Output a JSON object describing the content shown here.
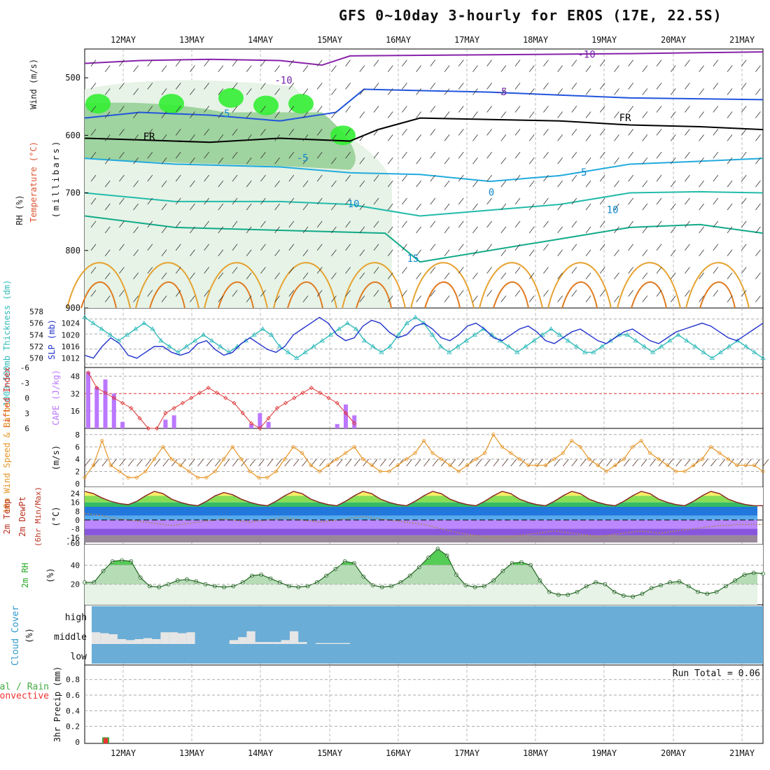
{
  "title": "GFS 0~10day 3-hourly for EROS (17E, 22.5S)",
  "dates": [
    "12MAY",
    "13MAY",
    "14MAY",
    "15MAY",
    "16MAY",
    "17MAY",
    "18MAY",
    "19MAY",
    "20MAY",
    "21MAY"
  ],
  "colors": {
    "grid": "#aaaaaa",
    "rh_green_light": "#e6f3e6",
    "rh_green_mid": "#9fd39f",
    "rh_green_bright": "#33ee33",
    "cape_purple": "#bb77ff",
    "lifted_red": "#dd3333",
    "wind_orange": "#e69526",
    "slp_blue": "#2233cc",
    "thick_cyan": "#33bbbb",
    "cloud_blue": "#6aadd6",
    "cloud_gray": "#e6e6e6",
    "precip_green": "#44aa44",
    "precip_red": "#ee3333"
  },
  "chart_data": [
    {
      "type": "heatmap",
      "panel": "upper-air",
      "ylabel_left": [
        "RH (%)",
        "Temperature (°C)",
        "Wind (m/s)"
      ],
      "ylabel_right": "(millibars)",
      "y_ticks": [
        500,
        600,
        700,
        800,
        900
      ],
      "ylim": [
        900,
        450
      ],
      "contour_labels": [
        "-10",
        "-5",
        "FR",
        "-5",
        "10",
        "15",
        "-10",
        "-5",
        "FR",
        "-5",
        "10",
        "0"
      ],
      "rh_labels": [
        "10",
        "50",
        "50",
        "50",
        "10"
      ]
    },
    {
      "type": "line",
      "panel": "slp-thickness",
      "ylabel_left": "1000~500mb Thickness (dm)",
      "ylabel_right": "SLP (mb)",
      "left_ticks": [
        570,
        572,
        574,
        576,
        578
      ],
      "right_ticks": [
        1012,
        1016,
        1020,
        1024
      ],
      "series": [
        {
          "name": "SLP (mb)",
          "values": [
            1013,
            1012,
            1016,
            1019,
            1017,
            1013,
            1012,
            1014,
            1016,
            1016,
            1014,
            1013,
            1014,
            1017,
            1018,
            1015,
            1013,
            1014,
            1017,
            1019,
            1017,
            1015,
            1014,
            1016,
            1020,
            1022,
            1024,
            1026,
            1024,
            1020,
            1018,
            1019,
            1023,
            1025,
            1024,
            1021,
            1019,
            1020,
            1023,
            1024,
            1022,
            1019,
            1018,
            1020,
            1023,
            1024,
            1022,
            1019,
            1018,
            1020,
            1022,
            1023,
            1021,
            1018,
            1017,
            1019,
            1021,
            1022,
            1020,
            1018,
            1017,
            1019,
            1021,
            1022,
            1020,
            1018,
            1017,
            1019,
            1021,
            1022,
            1023,
            1024,
            1023,
            1021,
            1019,
            1018,
            1020,
            1022,
            1024
          ]
        },
        {
          "name": "Thickness (dm)",
          "values": [
            577,
            576,
            575,
            574,
            573,
            574,
            575,
            576,
            575,
            573,
            572,
            571,
            572,
            573,
            574,
            573,
            572,
            571,
            572,
            573,
            574,
            575,
            574,
            572,
            571,
            570,
            571,
            572,
            573,
            574,
            575,
            576,
            575,
            573,
            572,
            571,
            572,
            574,
            576,
            577,
            576,
            574,
            572,
            571,
            572,
            573,
            574,
            575,
            574,
            573,
            572,
            571,
            572,
            573,
            574,
            575,
            574,
            573,
            572,
            571,
            571,
            572,
            573,
            574,
            574,
            573,
            572,
            571,
            572,
            573,
            574,
            573,
            572,
            571,
            570,
            571,
            572,
            573,
            572,
            571,
            570
          ]
        }
      ]
    },
    {
      "type": "bar",
      "panel": "cape-lifted",
      "ylabel_left": "Lifted Index",
      "ylabel_right": "CAPE (J/kg)",
      "left_ticks": [
        "-6",
        "-3",
        "0",
        "3",
        "6"
      ],
      "right_ticks": [
        16,
        32,
        48
      ],
      "cape_values": [
        52,
        38,
        45,
        32,
        6,
        0,
        0,
        0,
        0,
        8,
        12,
        0,
        0,
        0,
        0,
        0,
        0,
        0,
        0,
        4,
        14,
        6,
        0,
        0,
        0,
        0,
        0,
        0,
        0,
        4,
        22,
        12
      ],
      "lifted_values": [
        -5,
        -2,
        -1,
        0,
        1,
        2,
        4,
        6,
        6,
        3,
        2,
        1,
        0,
        -1,
        -2,
        -1,
        0,
        1,
        3,
        5,
        6,
        4,
        2,
        1,
        0,
        -1,
        -2,
        -1,
        0,
        1,
        3,
        5
      ]
    },
    {
      "type": "line",
      "panel": "wind10m",
      "ylabel_left": "10m Wind Speed & Barbs",
      "ylabel_right": "(m/s)",
      "y_ticks": [
        0,
        2,
        4,
        6,
        8
      ],
      "series": [
        {
          "name": "10m Wind Speed",
          "values": [
            1,
            3,
            7,
            3,
            2,
            1,
            1,
            2,
            4,
            6,
            4,
            3,
            2,
            1,
            1,
            2,
            4,
            6,
            4,
            2,
            1,
            1,
            2,
            4,
            6,
            5,
            3,
            2,
            3,
            4,
            5,
            6,
            4,
            3,
            2,
            2,
            3,
            4,
            5,
            7,
            5,
            4,
            3,
            2,
            3,
            4,
            5,
            8,
            6,
            5,
            4,
            3,
            3,
            3,
            4,
            5,
            7,
            6,
            4,
            3,
            2,
            3,
            4,
            6,
            7,
            5,
            4,
            3,
            2,
            2,
            3,
            4,
            6,
            5,
            4,
            3,
            3,
            3,
            2
          ]
        }
      ]
    },
    {
      "type": "area",
      "panel": "temp2m",
      "ylabel_left": "2m Temp 2m DewPt (6hr Min/Max)",
      "ylabel_right": "(°C)",
      "y_ticks": [
        "24",
        "16",
        "8",
        "0",
        "-8",
        "-16",
        "-60"
      ],
      "series": [
        {
          "name": "2m Temp",
          "values": [
            26,
            24,
            20,
            17,
            15,
            14,
            17,
            22,
            26,
            24,
            19,
            16,
            14,
            13,
            17,
            22,
            25,
            23,
            19,
            16,
            14,
            13,
            17,
            22,
            26,
            24,
            19,
            16,
            14,
            13,
            17,
            22,
            26,
            24,
            19,
            16,
            14,
            13,
            17,
            22,
            26,
            24,
            19,
            16,
            14,
            13,
            17,
            22,
            26,
            24,
            19,
            16,
            14,
            13,
            17,
            22,
            26,
            24,
            19,
            16,
            14,
            13,
            17,
            22,
            26,
            24,
            19,
            16,
            14,
            13,
            17,
            22,
            26,
            24,
            19,
            16,
            14,
            13,
            13
          ]
        },
        {
          "name": "2m DewPt",
          "values": [
            6,
            5,
            4,
            2,
            1,
            0,
            -1,
            -2,
            -3,
            -4,
            -5,
            -4,
            -3,
            -2,
            -1,
            0,
            1,
            0,
            -1,
            -2,
            -1,
            0,
            1,
            2,
            1,
            0,
            -1,
            -2,
            -1,
            0,
            1,
            2,
            3,
            2,
            1,
            0,
            -1,
            -2,
            -3,
            -4,
            -6,
            -8,
            -10,
            -12,
            -13,
            -14,
            -15,
            -16,
            -16,
            -15,
            -14,
            -13,
            -12,
            -11,
            -10,
            -11,
            -12,
            -13,
            -14,
            -15,
            -14,
            -13,
            -12,
            -11,
            -10,
            -11,
            -12,
            -11,
            -10,
            -9,
            -8,
            -7,
            -6,
            -5,
            -5,
            -4,
            -4,
            -4,
            -4
          ]
        }
      ]
    },
    {
      "type": "area",
      "panel": "rh2m",
      "ylabel_left": "2m RH",
      "ylabel_right": "(%)",
      "y_ticks": [
        20,
        40
      ],
      "series": [
        {
          "name": "2m RH",
          "values": [
            22,
            22,
            34,
            44,
            45,
            44,
            27,
            18,
            17,
            20,
            24,
            25,
            23,
            20,
            18,
            17,
            18,
            22,
            29,
            30,
            26,
            22,
            18,
            17,
            18,
            22,
            29,
            36,
            44,
            42,
            28,
            19,
            17,
            18,
            22,
            29,
            38,
            48,
            57,
            50,
            30,
            19,
            17,
            18,
            24,
            34,
            42,
            43,
            40,
            24,
            12,
            9,
            9,
            12,
            18,
            22,
            20,
            12,
            8,
            7,
            10,
            16,
            19,
            22,
            23,
            18,
            12,
            10,
            12,
            18,
            24,
            30,
            32,
            31
          ]
        }
      ]
    },
    {
      "type": "bar",
      "panel": "cloud",
      "ylabel_left": "Cloud Cover",
      "ylabel_right": "(%)",
      "levels": [
        "high",
        "middle",
        "low"
      ],
      "middle_values": [
        60,
        55,
        50,
        25,
        20,
        25,
        30,
        25,
        60,
        60,
        55,
        60,
        0,
        0,
        0,
        0,
        20,
        35,
        65,
        10,
        10,
        10,
        20,
        65,
        10,
        0,
        5,
        5,
        5,
        5
      ]
    },
    {
      "type": "bar",
      "panel": "precip",
      "ylabel_left": "3hr Precip (mm)",
      "legend": [
        "Total / Rain",
        "Convective"
      ],
      "y_ticks": [
        "0",
        "0.2",
        "0.4",
        "0.6",
        "0.8"
      ],
      "annotation": "Run Total = 0.06",
      "values": [
        0.06
      ],
      "convective": [
        0.05
      ]
    }
  ]
}
